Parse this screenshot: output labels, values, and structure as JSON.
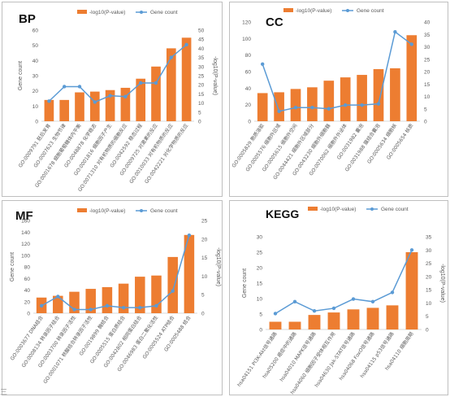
{
  "legend": {
    "bar_label": "-log10(P-value)",
    "line_label": "Gene count"
  },
  "colors": {
    "bar": "#ed7d31",
    "line": "#5b9bd5",
    "axis": "#d9d9d9",
    "text": "#595959"
  },
  "footer_mark": "三",
  "chart_data": [
    {
      "panel": "BP",
      "type": "bar+line",
      "title": "BP",
      "ylabel_left": "Gene count",
      "ylabel_right": "-log10(P-value)",
      "ylim_left": [
        0,
        60
      ],
      "yticks_left": [
        0,
        10,
        20,
        30,
        40,
        50,
        60
      ],
      "ylim_right": [
        0,
        50
      ],
      "yticks_right": [
        0,
        5,
        10,
        15,
        20,
        25,
        30,
        35,
        40,
        45,
        50
      ],
      "categories": [
        "GO:0009791 胚后发育",
        "GO:0007623 生物节律",
        "GO:0001678 细胞葡萄糖体内平衡",
        "GO:0048878 化学稳态",
        "GO:0001816 细胞因子产生",
        "GO:0071310 对有机物质的细胞反应",
        "GO:0042592 稳态过程",
        "GO:0009725 对激素的反应",
        "GO:0010033 对有机物质的反应",
        "GO:0042221 对化学物质的反应"
      ],
      "series": [
        {
          "name": "-log10(P-value)",
          "kind": "bar",
          "axis": "left",
          "values": [
            14,
            14,
            19,
            19.5,
            20.5,
            22,
            28,
            36,
            48,
            55
          ]
        },
        {
          "name": "Gene count",
          "kind": "line",
          "axis": "right",
          "values": [
            11,
            19,
            19,
            10.5,
            14,
            13.5,
            21,
            21,
            35,
            42
          ]
        }
      ]
    },
    {
      "panel": "CC",
      "type": "bar+line",
      "title": "CC",
      "ylim_left": [
        0,
        120
      ],
      "yticks_left": [
        0,
        20,
        40,
        60,
        80,
        100,
        120
      ],
      "ylim_right": [
        0,
        40
      ],
      "yticks_right": [
        0,
        5,
        10,
        15,
        20,
        25,
        30,
        35,
        40
      ],
      "categories": [
        "GO:0005829 胞质溶胶",
        "GO:0005576 细胞外区域",
        "GO:0005615 细胞外空间",
        "GO:0044421 细胞外区域部分",
        "GO:0043230 细胞外细胞器",
        "GO:0070062 细胞外外泌体",
        "GO:0031982 囊泡",
        "GO:0031988 膜结合囊泡",
        "GO:0005634 细胞核",
        "GO:0005654 核质"
      ],
      "series": [
        {
          "name": "-log10(P-value)",
          "kind": "bar",
          "axis": "left",
          "values": [
            34,
            35,
            39,
            41,
            49,
            53,
            56,
            63,
            64,
            104
          ]
        },
        {
          "name": "Gene count",
          "kind": "line",
          "axis": "right",
          "values": [
            23,
            4,
            5.5,
            5.5,
            5,
            6.5,
            6.5,
            7,
            36,
            31
          ]
        }
      ]
    },
    {
      "panel": "MF",
      "type": "bar+line",
      "title": "MF",
      "ylabel_left": "Gene count",
      "ylabel_right": "-log10(P-value)",
      "ylim_left": [
        0,
        160
      ],
      "yticks_left": [
        0,
        20,
        40,
        60,
        80,
        100,
        120,
        140,
        160
      ],
      "ylim_right": [
        0,
        25
      ],
      "yticks_right": [
        0,
        5,
        10,
        15,
        20,
        25
      ],
      "categories": [
        "GO:0003677 DNA结合",
        "GO:0008134 转录因子结合",
        "GO:0003700 转录因子活性",
        "GO:0001071 核酸结合转录因子活性",
        "GO:0019899 酶结合",
        "GO:0005515 蛋白质结合",
        "GO:0042802 相同蛋白结合",
        "GO:0046983 蛋白二聚化活性",
        "GO:0005524 ATP结合",
        "GO:0005488 结合"
      ],
      "series": [
        {
          "name": "-log10(P-value)",
          "kind": "bar",
          "axis": "left",
          "values": [
            27,
            30,
            37,
            42,
            45,
            51,
            63,
            65,
            97,
            135
          ]
        },
        {
          "name": "Gene count",
          "kind": "line",
          "axis": "right",
          "values": [
            2,
            4.5,
            1,
            1,
            2,
            1.5,
            1.5,
            2,
            6,
            21
          ]
        }
      ]
    },
    {
      "panel": "KEGG",
      "type": "bar+line",
      "title": "KEGG",
      "ylabel_left": "Gene count",
      "ylabel_right": "-log10(P-value)",
      "ylim_left": [
        0,
        30
      ],
      "yticks_left": [
        0,
        5,
        10,
        15,
        20,
        25,
        30
      ],
      "ylim_right": [
        0,
        35
      ],
      "yticks_right": [
        0,
        5,
        10,
        15,
        20,
        25,
        30,
        35
      ],
      "categories": [
        "hsa04151 PI3K-Akt信号通路",
        "hsa05200 癌症中的通路",
        "hsa04010 MAPK信号通路",
        "hsa04060 细胞因子受体相互作用",
        "hsa04630 Jak-STAT信号通路",
        "hsa04068 FoxO信号通路",
        "hsa04115 p53信号通路",
        "hsa04110 细胞周期"
      ],
      "series": [
        {
          "name": "-log10(P-value)",
          "kind": "bar",
          "axis": "left",
          "values": [
            2.5,
            2.5,
            4.7,
            5.5,
            6.5,
            7,
            7.8,
            25
          ]
        },
        {
          "name": "Gene count",
          "kind": "line",
          "axis": "right",
          "values": [
            6,
            10.5,
            7,
            8,
            11.5,
            10.5,
            14,
            30
          ]
        }
      ]
    }
  ]
}
